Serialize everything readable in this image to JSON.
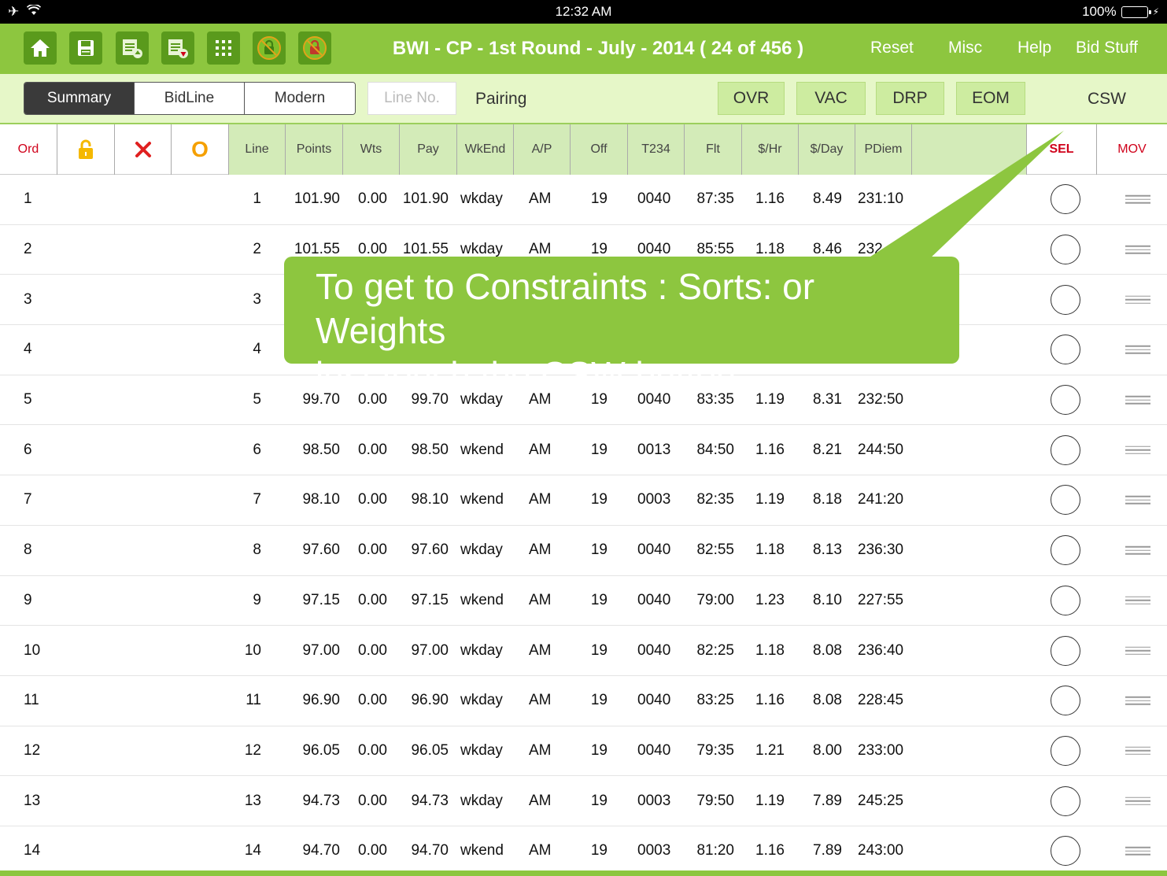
{
  "status": {
    "time": "12:32 AM",
    "battery": "100%"
  },
  "toolbar": {
    "title": "BWI - CP - 1st Round - July - 2014 ( 24 of 456 )",
    "icons": [
      "home-icon",
      "save-icon",
      "doc-up-icon",
      "doc-down-icon",
      "grid-icon",
      "green-lock-icon",
      "red-lock-icon"
    ],
    "menu": [
      "Reset",
      "Misc",
      "Help",
      "Bid Stuff"
    ]
  },
  "segbar": {
    "segments": [
      "Summary",
      "BidLine",
      "Modern"
    ],
    "active_segment": "Summary",
    "line_no_placeholder": "Line No.",
    "pairing": "Pairing",
    "buttons": [
      "OVR",
      "VAC",
      "DRP",
      "EOM"
    ],
    "csw": "CSW"
  },
  "columns": {
    "ord": "Ord",
    "line": "Line",
    "points": "Points",
    "wts": "Wts",
    "pay": "Pay",
    "wkend": "WkEnd",
    "ap": "A/P",
    "off": "Off",
    "t234": "T234",
    "flt": "Flt",
    "hr": "$/Hr",
    "day": "$/Day",
    "pdiem": "PDiem",
    "sel": "SEL",
    "mov": "MOV",
    "o_label": "O"
  },
  "rows": [
    {
      "ord": "1",
      "line": "1",
      "points": "101.90",
      "wts": "0.00",
      "pay": "101.90",
      "wkend": "wkday",
      "ap": "AM",
      "off": "19",
      "t234": "0040",
      "flt": "87:35",
      "hr": "1.16",
      "day": "8.49",
      "pdiem": "231:10"
    },
    {
      "ord": "2",
      "line": "2",
      "points": "101.55",
      "wts": "0.00",
      "pay": "101.55",
      "wkend": "wkday",
      "ap": "AM",
      "off": "19",
      "t234": "0040",
      "flt": "85:55",
      "hr": "1.18",
      "day": "8.46",
      "pdiem": "232"
    },
    {
      "ord": "3",
      "line": "3"
    },
    {
      "ord": "4",
      "line": "4"
    },
    {
      "ord": "5",
      "line": "5",
      "points": "99.70",
      "wts": "0.00",
      "pay": "99.70",
      "wkend": "wkday",
      "ap": "AM",
      "off": "19",
      "t234": "0040",
      "flt": "83:35",
      "hr": "1.19",
      "day": "8.31",
      "pdiem": "232:50"
    },
    {
      "ord": "6",
      "line": "6",
      "points": "98.50",
      "wts": "0.00",
      "pay": "98.50",
      "wkend": "wkend",
      "ap": "AM",
      "off": "19",
      "t234": "0013",
      "flt": "84:50",
      "hr": "1.16",
      "day": "8.21",
      "pdiem": "244:50"
    },
    {
      "ord": "7",
      "line": "7",
      "points": "98.10",
      "wts": "0.00",
      "pay": "98.10",
      "wkend": "wkend",
      "ap": "AM",
      "off": "19",
      "t234": "0003",
      "flt": "82:35",
      "hr": "1.19",
      "day": "8.18",
      "pdiem": "241:20"
    },
    {
      "ord": "8",
      "line": "8",
      "points": "97.60",
      "wts": "0.00",
      "pay": "97.60",
      "wkend": "wkday",
      "ap": "AM",
      "off": "19",
      "t234": "0040",
      "flt": "82:55",
      "hr": "1.18",
      "day": "8.13",
      "pdiem": "236:30"
    },
    {
      "ord": "9",
      "line": "9",
      "points": "97.15",
      "wts": "0.00",
      "pay": "97.15",
      "wkend": "wkend",
      "ap": "AM",
      "off": "19",
      "t234": "0040",
      "flt": "79:00",
      "hr": "1.23",
      "day": "8.10",
      "pdiem": "227:55"
    },
    {
      "ord": "10",
      "line": "10",
      "points": "97.00",
      "wts": "0.00",
      "pay": "97.00",
      "wkend": "wkday",
      "ap": "AM",
      "off": "19",
      "t234": "0040",
      "flt": "82:25",
      "hr": "1.18",
      "day": "8.08",
      "pdiem": "236:40"
    },
    {
      "ord": "11",
      "line": "11",
      "points": "96.90",
      "wts": "0.00",
      "pay": "96.90",
      "wkend": "wkday",
      "ap": "AM",
      "off": "19",
      "t234": "0040",
      "flt": "83:25",
      "hr": "1.16",
      "day": "8.08",
      "pdiem": "228:45"
    },
    {
      "ord": "12",
      "line": "12",
      "points": "96.05",
      "wts": "0.00",
      "pay": "96.05",
      "wkend": "wkday",
      "ap": "AM",
      "off": "19",
      "t234": "0040",
      "flt": "79:35",
      "hr": "1.21",
      "day": "8.00",
      "pdiem": "233:00"
    },
    {
      "ord": "13",
      "line": "13",
      "points": "94.73",
      "wts": "0.00",
      "pay": "94.73",
      "wkend": "wkday",
      "ap": "AM",
      "off": "19",
      "t234": "0003",
      "flt": "79:50",
      "hr": "1.19",
      "day": "7.89",
      "pdiem": "245:25"
    },
    {
      "ord": "14",
      "line": "14",
      "points": "94.70",
      "wts": "0.00",
      "pay": "94.70",
      "wkend": "wkend",
      "ap": "AM",
      "off": "19",
      "t234": "0003",
      "flt": "81:20",
      "hr": "1.16",
      "day": "7.89",
      "pdiem": "243:00"
    }
  ],
  "callout": {
    "line1": "To get to Constraints : Sorts: or Weights",
    "line2": "just touch the CSW button"
  },
  "colors": {
    "accent": "#8dc63f",
    "dark_green": "#5a9a1c",
    "header_green": "#d3ebb8",
    "red": "#d0021b"
  }
}
